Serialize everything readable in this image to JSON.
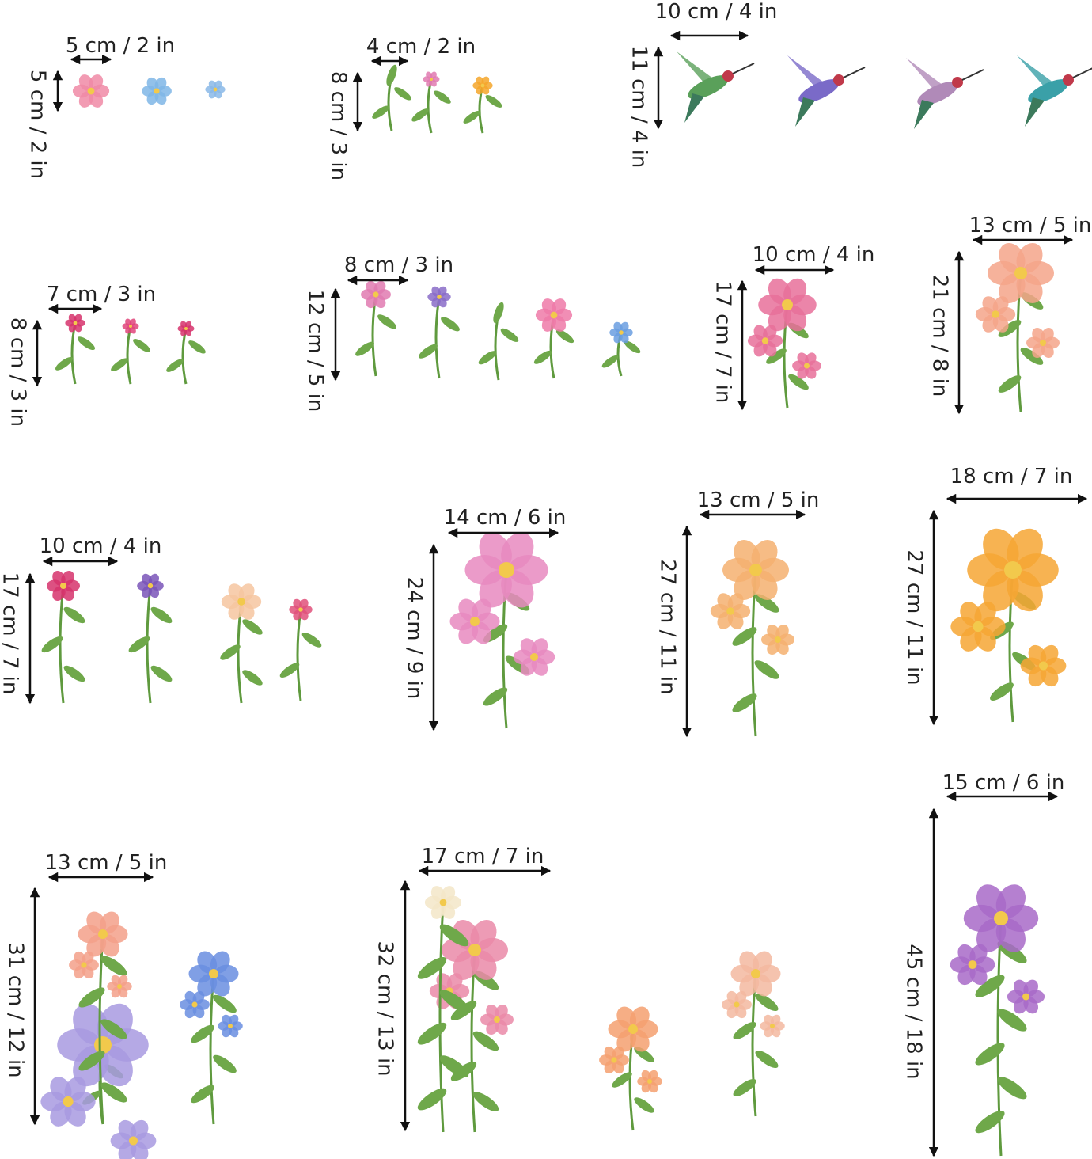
{
  "groups": [
    {
      "width": "5 cm / 2 in",
      "height": "5 cm / 2 in"
    },
    {
      "width": "4 cm / 2 in",
      "height": "8 cm / 3 in"
    },
    {
      "width": "10 cm / 4 in",
      "height": "11 cm / 4 in"
    },
    {
      "width": "7 cm / 3 in",
      "height": "8 cm / 3 in"
    },
    {
      "width": "8 cm / 3 in",
      "height": "12 cm / 5 in"
    },
    {
      "width": "10 cm / 4 in",
      "height": "17 cm / 7 in"
    },
    {
      "width": "13 cm / 5 in",
      "height": "21 cm / 8 in"
    },
    {
      "width": "10 cm / 4 in",
      "height": "17 cm / 7 in"
    },
    {
      "width": "14 cm / 6 in",
      "height": "24 cm / 9 in"
    },
    {
      "width": "13 cm / 5 in",
      "height": "27 cm / 11 in"
    },
    {
      "width": "18 cm / 7 in",
      "height": "27 cm / 11 in"
    },
    {
      "width": "13 cm / 5 in",
      "height": "31 cm / 12 in"
    },
    {
      "width": "17 cm / 7 in",
      "height": "32 cm / 13 in"
    },
    {
      "width": "15 cm / 6 in",
      "height": "45 cm / 18 in"
    }
  ]
}
